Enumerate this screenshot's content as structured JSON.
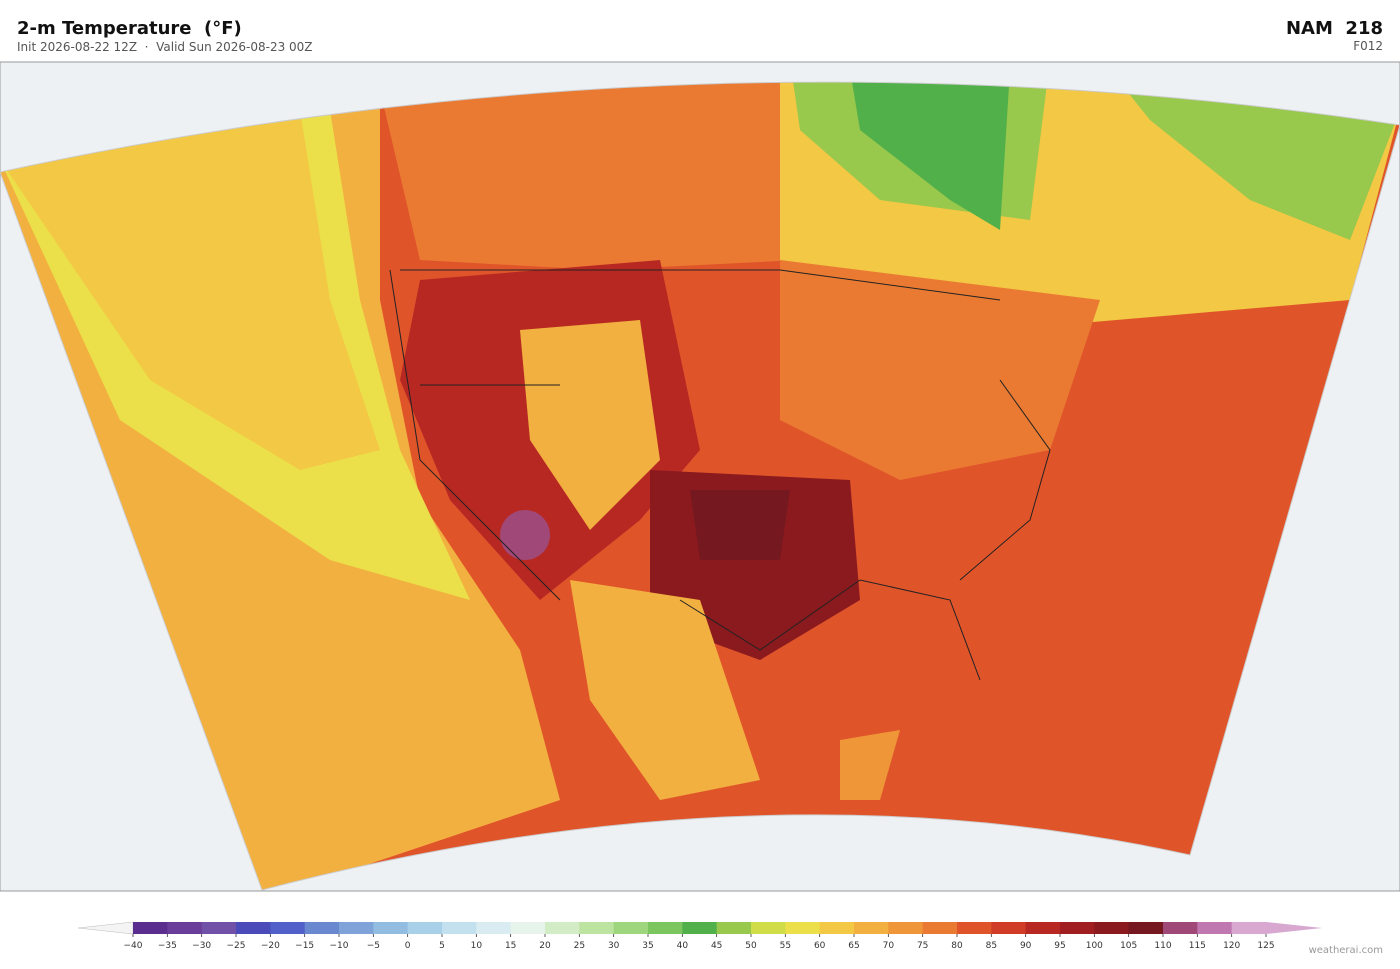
{
  "header": {
    "title": "2-m Temperature  (°F)",
    "subtitle": "Init 2026-08-22 12Z  ·  Valid Sun 2026-08-23 00Z",
    "model": "NAM  218",
    "forecast": "F012"
  },
  "colorbar": {
    "ticks": [
      {
        "value": -40,
        "label": "−40"
      },
      {
        "value": -35,
        "label": "−35"
      },
      {
        "value": -30,
        "label": "−30"
      },
      {
        "value": -25,
        "label": "−25"
      },
      {
        "value": -20,
        "label": "−20"
      },
      {
        "value": -15,
        "label": "−15"
      },
      {
        "value": -10,
        "label": "−10"
      },
      {
        "value": -5,
        "label": "−5"
      },
      0,
      5,
      10,
      15,
      20,
      25,
      30,
      35,
      40,
      45,
      50,
      55,
      60,
      65,
      70,
      75,
      80,
      85,
      90,
      95,
      100,
      105,
      110,
      115,
      120,
      125
    ],
    "colors": [
      "#5b2d8e",
      "#6a3d9a",
      "#7150a8",
      "#4a4ab8",
      "#5060c8",
      "#6a88d0",
      "#7fa3d8",
      "#92bde0",
      "#a8d0e8",
      "#c2e0ee",
      "#d8ecf2",
      "#e6f4ec",
      "#d2ecc6",
      "#bce4a0",
      "#9ed67e",
      "#7cc660",
      "#52b04a",
      "#98c84c",
      "#d0dc48",
      "#ece04a",
      "#f2c844",
      "#f2b040",
      "#ee9638",
      "#ea7a32",
      "#e0542a",
      "#d03c26",
      "#b82822",
      "#a01e20",
      "#8a1a1e",
      "#761820",
      "#a04878",
      "#c078b0",
      "#d8a8d0"
    ],
    "extend_colors": [
      "#f4f4f4",
      "#d8a8d0"
    ]
  },
  "credit": "weatherai.com"
}
